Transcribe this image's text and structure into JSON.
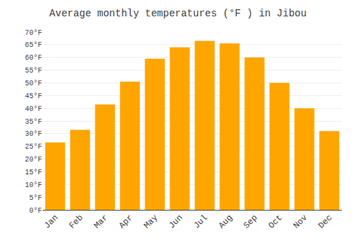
{
  "chart_data": {
    "type": "bar",
    "title": "Average monthly temperatures (°F ) in Jibou",
    "categories": [
      "Jan",
      "Feb",
      "Mar",
      "Apr",
      "May",
      "Jun",
      "Jul",
      "Aug",
      "Sep",
      "Oct",
      "Nov",
      "Dec"
    ],
    "values": [
      26.5,
      31.5,
      41.5,
      50.5,
      59.5,
      64.0,
      66.5,
      65.5,
      60.0,
      50.0,
      40.0,
      31.0
    ],
    "color": "#FFA500",
    "ylim": [
      0,
      70
    ],
    "yticks": [
      {
        "value": 0,
        "label": "0°F"
      },
      {
        "value": 5,
        "label": "5°F"
      },
      {
        "value": 10,
        "label": "10°F"
      },
      {
        "value": 15,
        "label": "15°F"
      },
      {
        "value": 20,
        "label": "20°F"
      },
      {
        "value": 25,
        "label": "25°F"
      },
      {
        "value": 30,
        "label": "30°F"
      },
      {
        "value": 35,
        "label": "35°F"
      },
      {
        "value": 40,
        "label": "40°F"
      },
      {
        "value": 45,
        "label": "45°F"
      },
      {
        "value": 50,
        "label": "50°F"
      },
      {
        "value": 55,
        "label": "55°F"
      },
      {
        "value": 60,
        "label": "60°F"
      },
      {
        "value": 65,
        "label": "65°F"
      },
      {
        "value": 70,
        "label": "70°F"
      }
    ],
    "grid": true
  }
}
